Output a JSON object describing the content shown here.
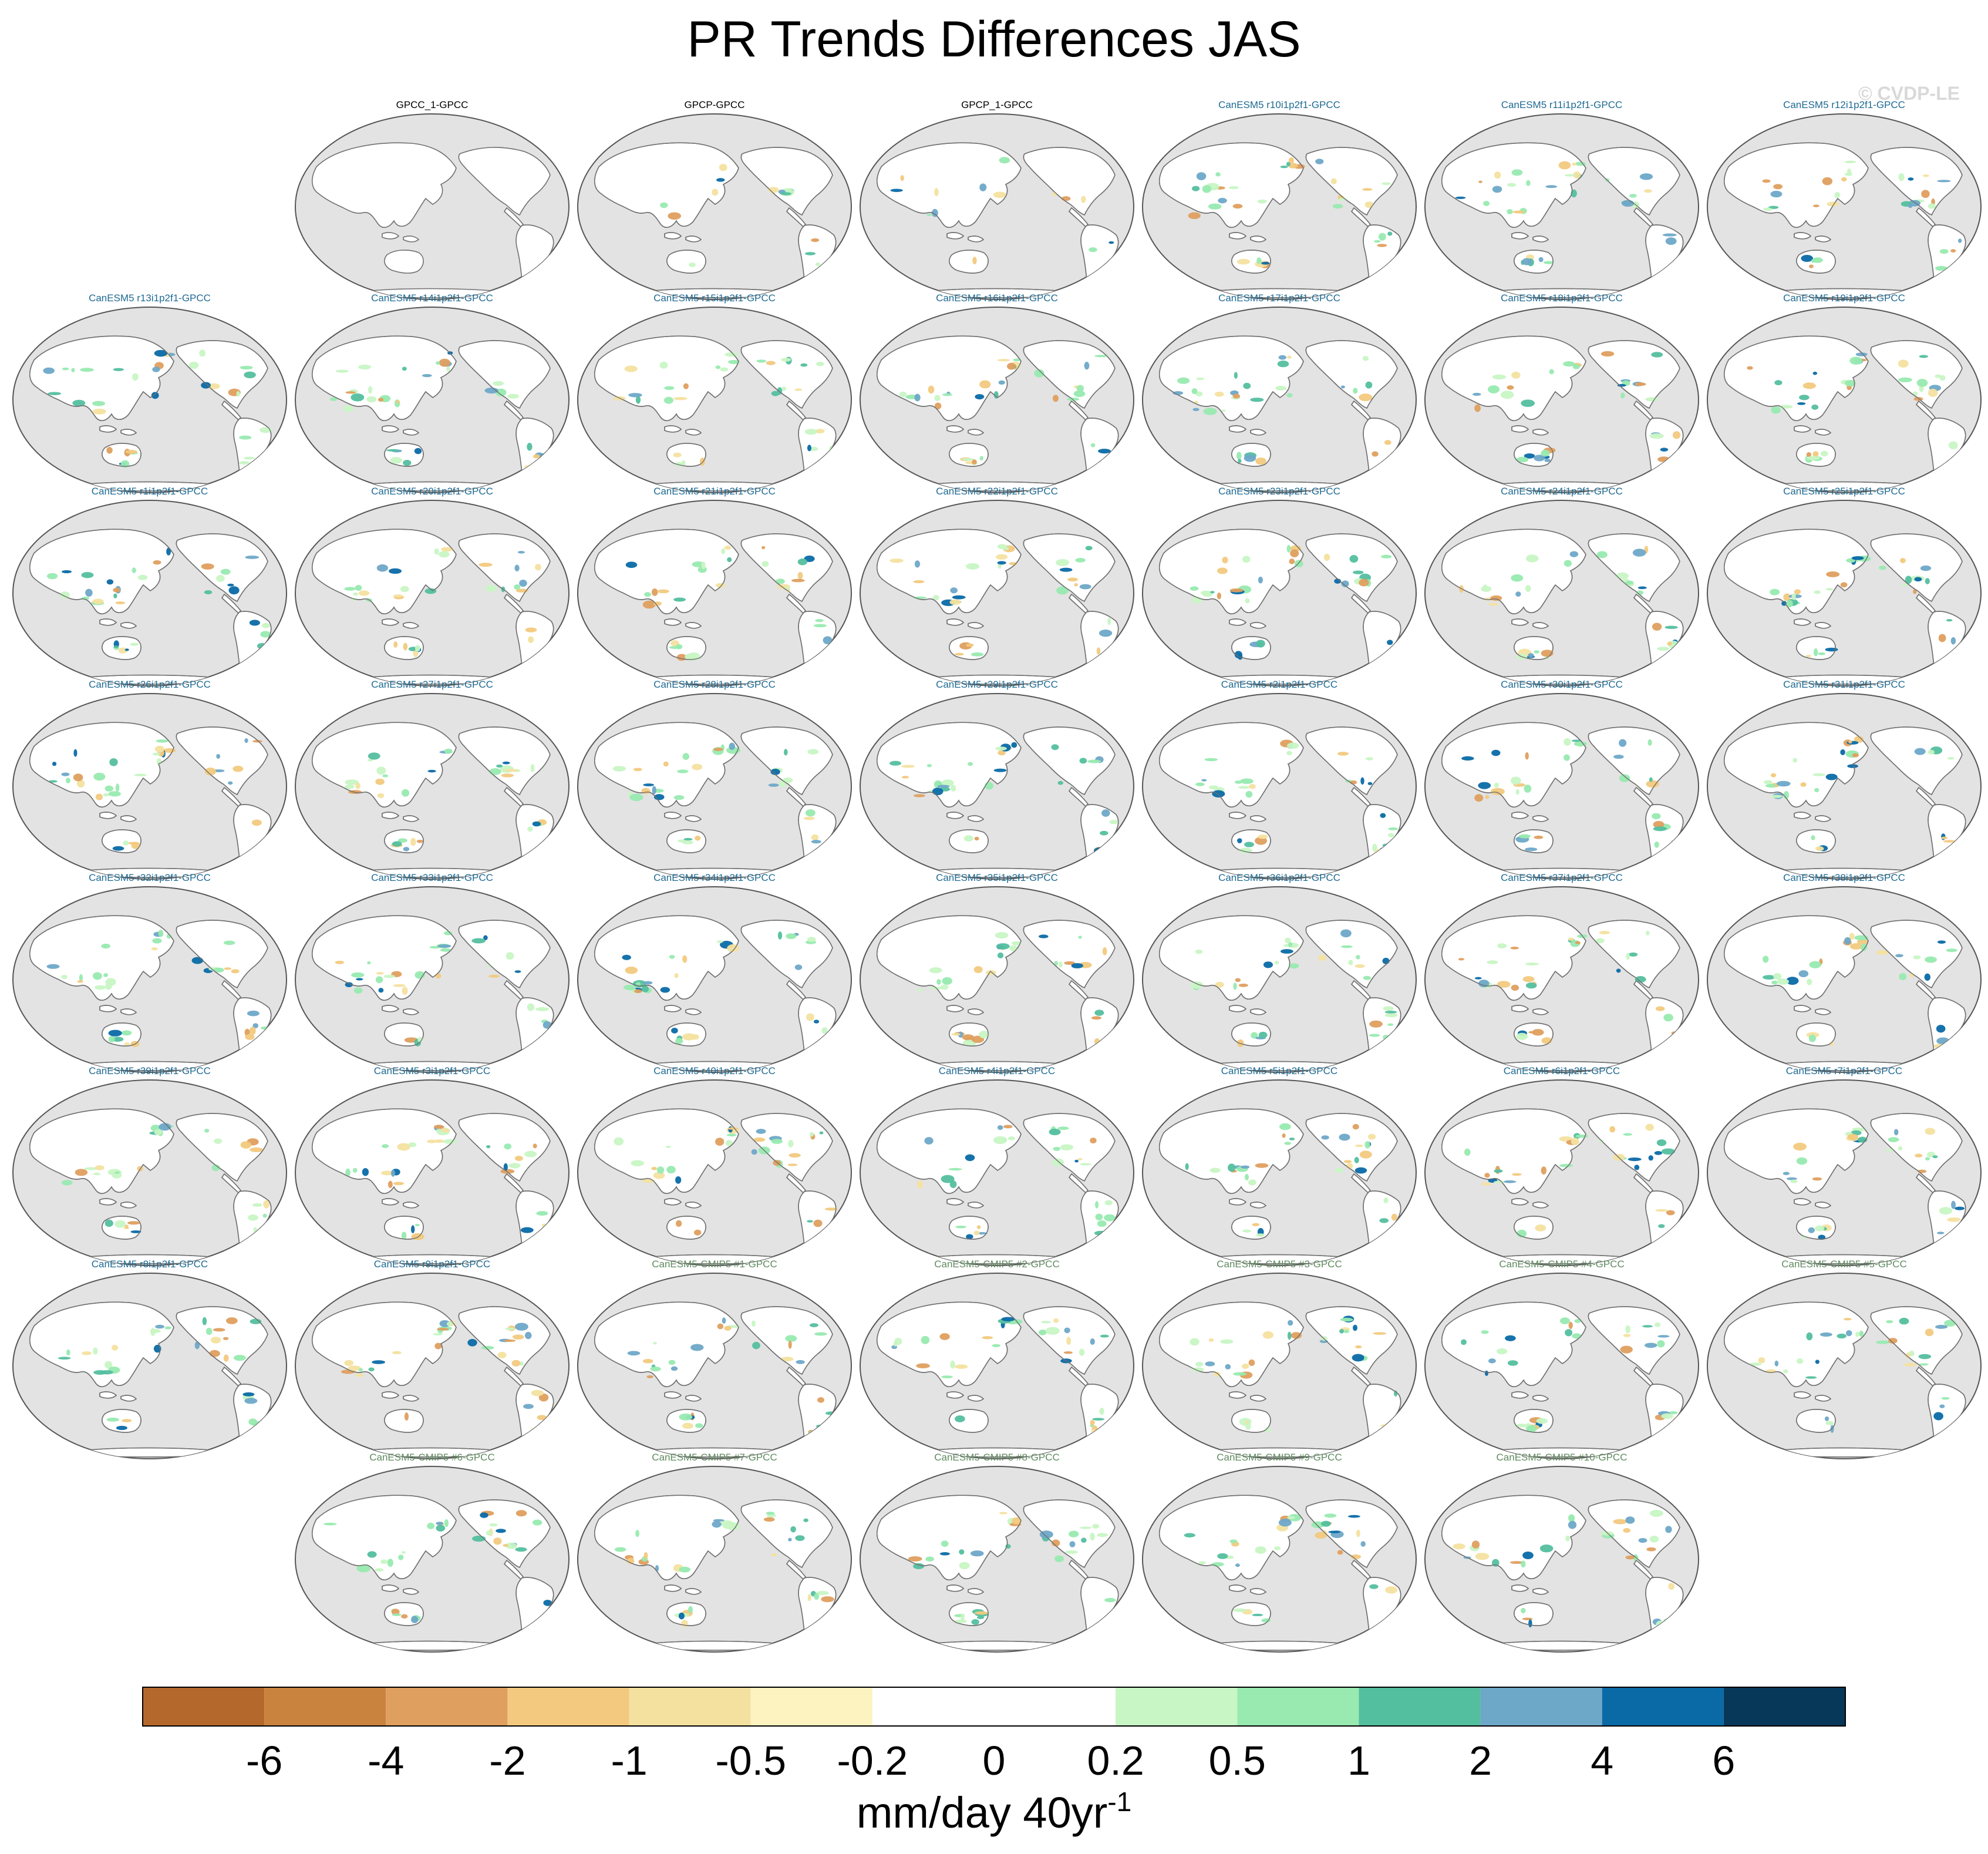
{
  "chart_data": {
    "type": "heatmap",
    "title": "PR Trends Differences JAS",
    "watermark": "© CVDP-LE",
    "projection": "global map, Pacific-centered",
    "units": "mm/day 40yr",
    "units_superscript": "-1",
    "panels": [
      {
        "label": "",
        "group": "empty"
      },
      {
        "label": "GPCC_1-GPCC",
        "group": "obs"
      },
      {
        "label": "GPCP-GPCC",
        "group": "obs"
      },
      {
        "label": "GPCP_1-GPCC",
        "group": "obs"
      },
      {
        "label": "CanESM5 r10i1p2f1-GPCC",
        "group": "le"
      },
      {
        "label": "CanESM5 r11i1p2f1-GPCC",
        "group": "le"
      },
      {
        "label": "CanESM5 r12i1p2f1-GPCC",
        "group": "le"
      },
      {
        "label": "CanESM5 r13i1p2f1-GPCC",
        "group": "le"
      },
      {
        "label": "CanESM5 r14i1p2f1-GPCC",
        "group": "le"
      },
      {
        "label": "CanESM5 r15i1p2f1-GPCC",
        "group": "le"
      },
      {
        "label": "CanESM5 r16i1p2f1-GPCC",
        "group": "le"
      },
      {
        "label": "CanESM5 r17i1p2f1-GPCC",
        "group": "le"
      },
      {
        "label": "CanESM5 r18i1p2f1-GPCC",
        "group": "le"
      },
      {
        "label": "CanESM5 r19i1p2f1-GPCC",
        "group": "le"
      },
      {
        "label": "CanESM5 r1i1p2f1-GPCC",
        "group": "le"
      },
      {
        "label": "CanESM5 r20i1p2f1-GPCC",
        "group": "le"
      },
      {
        "label": "CanESM5 r21i1p2f1-GPCC",
        "group": "le"
      },
      {
        "label": "CanESM5 r22i1p2f1-GPCC",
        "group": "le"
      },
      {
        "label": "CanESM5 r23i1p2f1-GPCC",
        "group": "le"
      },
      {
        "label": "CanESM5 r24i1p2f1-GPCC",
        "group": "le"
      },
      {
        "label": "CanESM5 r25i1p2f1-GPCC",
        "group": "le"
      },
      {
        "label": "CanESM5 r26i1p2f1-GPCC",
        "group": "le"
      },
      {
        "label": "CanESM5 r27i1p2f1-GPCC",
        "group": "le"
      },
      {
        "label": "CanESM5 r28i1p2f1-GPCC",
        "group": "le"
      },
      {
        "label": "CanESM5 r29i1p2f1-GPCC",
        "group": "le"
      },
      {
        "label": "CanESM5 r2i1p2f1-GPCC",
        "group": "le"
      },
      {
        "label": "CanESM5 r30i1p2f1-GPCC",
        "group": "le"
      },
      {
        "label": "CanESM5 r31i1p2f1-GPCC",
        "group": "le"
      },
      {
        "label": "CanESM5 r32i1p2f1-GPCC",
        "group": "le"
      },
      {
        "label": "CanESM5 r33i1p2f1-GPCC",
        "group": "le"
      },
      {
        "label": "CanESM5 r34i1p2f1-GPCC",
        "group": "le"
      },
      {
        "label": "CanESM5 r35i1p2f1-GPCC",
        "group": "le"
      },
      {
        "label": "CanESM5 r36i1p2f1-GPCC",
        "group": "le"
      },
      {
        "label": "CanESM5 r37i1p2f1-GPCC",
        "group": "le"
      },
      {
        "label": "CanESM5 r38i1p2f1-GPCC",
        "group": "le"
      },
      {
        "label": "CanESM5 r39i1p2f1-GPCC",
        "group": "le"
      },
      {
        "label": "CanESM5 r3i1p2f1-GPCC",
        "group": "le"
      },
      {
        "label": "CanESM5 r40i1p2f1-GPCC",
        "group": "le"
      },
      {
        "label": "CanESM5 r4i1p2f1-GPCC",
        "group": "le"
      },
      {
        "label": "CanESM5 r5i1p2f1-GPCC",
        "group": "le"
      },
      {
        "label": "CanESM5 r6i1p2f1-GPCC",
        "group": "le"
      },
      {
        "label": "CanESM5 r7i1p2f1-GPCC",
        "group": "le"
      },
      {
        "label": "CanESM5 r8i1p2f1-GPCC",
        "group": "le"
      },
      {
        "label": "CanESM5 r9i1p2f1-GPCC",
        "group": "le"
      },
      {
        "label": "CanESM5-CMIP5 #1-GPCC",
        "group": "cmip5"
      },
      {
        "label": "CanESM5-CMIP5 #2-GPCC",
        "group": "cmip5"
      },
      {
        "label": "CanESM5-CMIP5 #3-GPCC",
        "group": "cmip5"
      },
      {
        "label": "CanESM5-CMIP5 #4-GPCC",
        "group": "cmip5"
      },
      {
        "label": "CanESM5-CMIP5 #5-GPCC",
        "group": "cmip5"
      },
      {
        "label": "",
        "group": "empty"
      },
      {
        "label": "CanESM5-CMIP5 #6-GPCC",
        "group": "cmip5"
      },
      {
        "label": "CanESM5-CMIP5 #7-GPCC",
        "group": "cmip5"
      },
      {
        "label": "CanESM5-CMIP5 #8-GPCC",
        "group": "cmip5"
      },
      {
        "label": "CanESM5-CMIP5 #9-GPCC",
        "group": "cmip5"
      },
      {
        "label": "CanESM5-CMIP5 #10-GPCC",
        "group": "cmip5"
      }
    ],
    "colorbar": {
      "ticks": [
        "-6",
        "-4",
        "-2",
        "-1",
        "-0.5",
        "-0.2",
        "0",
        "0.2",
        "0.5",
        "1",
        "2",
        "4",
        "6"
      ],
      "colors": [
        "#b5682b",
        "#ca833f",
        "#df9f5f",
        "#f2c97e",
        "#f4e1a0",
        "#fdf3c0",
        "#ffffff",
        "#ffffff",
        "#c8f6c4",
        "#98eab0",
        "#54bf9f",
        "#6ea8c8",
        "#0a6aa6",
        "#07385a"
      ]
    },
    "colors": {
      "ocean": "#e3e3e3",
      "coast": "#707070",
      "title_obs": "#000000",
      "title_le": "#1e6a92",
      "title_cmip5": "#5f8a5f",
      "watermark": "#d9d9d9"
    }
  }
}
